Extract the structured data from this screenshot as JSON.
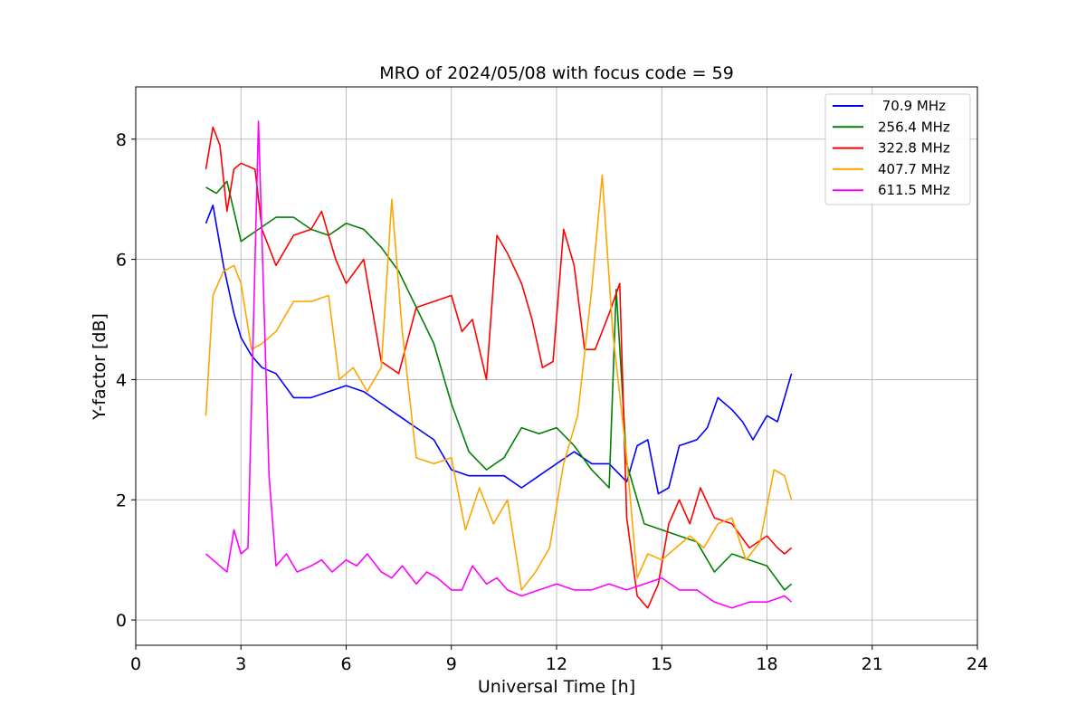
{
  "chart_data": {
    "type": "line",
    "title": "MRO of 2024/05/08 with focus code = 59",
    "xlabel": "Universal Time [h]",
    "ylabel": "Y-factor [dB]",
    "xlim": [
      0,
      24
    ],
    "ylim": [
      -0.42,
      8.87
    ],
    "xticks": [
      0,
      3,
      6,
      9,
      12,
      15,
      18,
      21,
      24
    ],
    "xtick_labels": [
      "0",
      "3",
      "6",
      "9",
      "12",
      "15",
      "18",
      "21",
      "24"
    ],
    "yticks": [
      0,
      2,
      4,
      6,
      8
    ],
    "ytick_labels": [
      "0",
      "2",
      "4",
      "6",
      "8"
    ],
    "grid": true,
    "legend_position": "top-right",
    "series": [
      {
        "name": " 70.9 MHz",
        "color": "#0000ff",
        "x": [
          2.0,
          2.2,
          2.5,
          2.8,
          3.0,
          3.3,
          3.6,
          4.0,
          4.5,
          5.0,
          5.5,
          6.0,
          6.5,
          7.0,
          7.5,
          8.0,
          8.5,
          9.0,
          9.5,
          10.0,
          10.5,
          11.0,
          11.5,
          12.0,
          12.5,
          13.0,
          13.5,
          14.0,
          14.3,
          14.6,
          14.9,
          15.2,
          15.5,
          16.0,
          16.3,
          16.6,
          17.0,
          17.3,
          17.6,
          18.0,
          18.3,
          18.5,
          18.7
        ],
        "y": [
          6.6,
          6.9,
          5.9,
          5.1,
          4.7,
          4.4,
          4.2,
          4.1,
          3.7,
          3.7,
          3.8,
          3.9,
          3.8,
          3.6,
          3.4,
          3.2,
          3.0,
          2.5,
          2.4,
          2.4,
          2.4,
          2.2,
          2.4,
          2.6,
          2.8,
          2.6,
          2.6,
          2.3,
          2.9,
          3.0,
          2.1,
          2.2,
          2.9,
          3.0,
          3.2,
          3.7,
          3.5,
          3.3,
          3.0,
          3.4,
          3.3,
          3.7,
          4.1
        ]
      },
      {
        "name": "256.4 MHz",
        "color": "#008000",
        "x": [
          2.0,
          2.3,
          2.6,
          3.0,
          3.5,
          4.0,
          4.5,
          5.0,
          5.5,
          6.0,
          6.5,
          7.0,
          7.5,
          8.0,
          8.5,
          9.0,
          9.5,
          10.0,
          10.5,
          11.0,
          11.5,
          12.0,
          12.5,
          13.0,
          13.5,
          13.7,
          14.0,
          14.5,
          15.0,
          15.5,
          16.0,
          16.5,
          17.0,
          17.5,
          18.0,
          18.5,
          18.7
        ],
        "y": [
          7.2,
          7.1,
          7.3,
          6.3,
          6.5,
          6.7,
          6.7,
          6.5,
          6.4,
          6.6,
          6.5,
          6.2,
          5.8,
          5.2,
          4.6,
          3.6,
          2.8,
          2.5,
          2.7,
          3.2,
          3.1,
          3.2,
          2.9,
          2.5,
          2.2,
          5.5,
          2.6,
          1.6,
          1.5,
          1.4,
          1.3,
          0.8,
          1.1,
          1.0,
          0.9,
          0.5,
          0.6
        ]
      },
      {
        "name": "322.8 MHz",
        "color": "#ff0000",
        "x": [
          2.0,
          2.2,
          2.4,
          2.6,
          2.8,
          3.0,
          3.4,
          3.6,
          4.0,
          4.5,
          5.0,
          5.3,
          5.7,
          6.0,
          6.5,
          7.0,
          7.5,
          8.0,
          8.5,
          9.0,
          9.3,
          9.6,
          10.0,
          10.3,
          10.6,
          11.0,
          11.3,
          11.6,
          11.9,
          12.2,
          12.5,
          12.8,
          13.1,
          13.5,
          13.8,
          14.0,
          14.3,
          14.6,
          14.9,
          15.2,
          15.5,
          15.8,
          16.1,
          16.5,
          17.0,
          17.5,
          18.0,
          18.3,
          18.5,
          18.7
        ],
        "y": [
          7.5,
          8.2,
          7.9,
          6.8,
          7.5,
          7.6,
          7.5,
          6.5,
          5.9,
          6.4,
          6.5,
          6.8,
          6.0,
          5.6,
          6.0,
          4.3,
          4.1,
          5.2,
          5.3,
          5.4,
          4.8,
          5.0,
          4.0,
          6.4,
          6.1,
          5.6,
          5.0,
          4.2,
          4.3,
          6.5,
          5.9,
          4.5,
          4.5,
          5.1,
          5.6,
          1.7,
          0.4,
          0.2,
          0.6,
          1.6,
          2.0,
          1.6,
          2.2,
          1.7,
          1.6,
          1.2,
          1.4,
          1.2,
          1.1,
          1.2
        ]
      },
      {
        "name": "407.7 MHz",
        "color": "#ffa500",
        "x": [
          2.0,
          2.2,
          2.5,
          2.8,
          3.0,
          3.3,
          3.6,
          4.0,
          4.5,
          5.0,
          5.5,
          5.8,
          6.2,
          6.6,
          7.0,
          7.3,
          7.6,
          8.0,
          8.5,
          9.0,
          9.4,
          9.8,
          10.2,
          10.6,
          11.0,
          11.4,
          11.8,
          12.2,
          12.6,
          13.0,
          13.3,
          13.6,
          14.0,
          14.3,
          14.6,
          15.0,
          15.4,
          15.8,
          16.2,
          16.6,
          17.0,
          17.4,
          17.8,
          18.2,
          18.5,
          18.7
        ],
        "y": [
          3.4,
          5.4,
          5.8,
          5.9,
          5.6,
          4.5,
          4.6,
          4.8,
          5.3,
          5.3,
          5.4,
          4.0,
          4.2,
          3.8,
          4.2,
          7.0,
          4.8,
          2.7,
          2.6,
          2.7,
          1.5,
          2.2,
          1.6,
          2.0,
          0.5,
          0.8,
          1.2,
          2.6,
          3.4,
          5.5,
          7.4,
          4.8,
          2.7,
          0.7,
          1.1,
          1.0,
          1.2,
          1.4,
          1.2,
          1.6,
          1.7,
          1.0,
          1.3,
          2.5,
          2.4,
          2.0
        ]
      },
      {
        "name": "611.5 MHz",
        "color": "#ff00ff",
        "x": [
          2.0,
          2.2,
          2.4,
          2.6,
          2.8,
          3.0,
          3.2,
          3.5,
          3.8,
          4.0,
          4.3,
          4.6,
          5.0,
          5.3,
          5.6,
          6.0,
          6.3,
          6.6,
          7.0,
          7.3,
          7.6,
          8.0,
          8.3,
          8.6,
          9.0,
          9.3,
          9.6,
          10.0,
          10.3,
          10.6,
          11.0,
          11.5,
          12.0,
          12.5,
          13.0,
          13.5,
          14.0,
          14.5,
          15.0,
          15.5,
          16.0,
          16.5,
          17.0,
          17.5,
          18.0,
          18.5,
          18.7
        ],
        "y": [
          1.1,
          1.0,
          0.9,
          0.8,
          1.5,
          1.1,
          1.2,
          8.3,
          2.4,
          0.9,
          1.1,
          0.8,
          0.9,
          1.0,
          0.8,
          1.0,
          0.9,
          1.1,
          0.8,
          0.7,
          0.9,
          0.6,
          0.8,
          0.7,
          0.5,
          0.5,
          0.9,
          0.6,
          0.7,
          0.5,
          0.4,
          0.5,
          0.6,
          0.5,
          0.5,
          0.6,
          0.5,
          0.6,
          0.7,
          0.5,
          0.5,
          0.3,
          0.2,
          0.3,
          0.3,
          0.4,
          0.3
        ]
      }
    ]
  }
}
